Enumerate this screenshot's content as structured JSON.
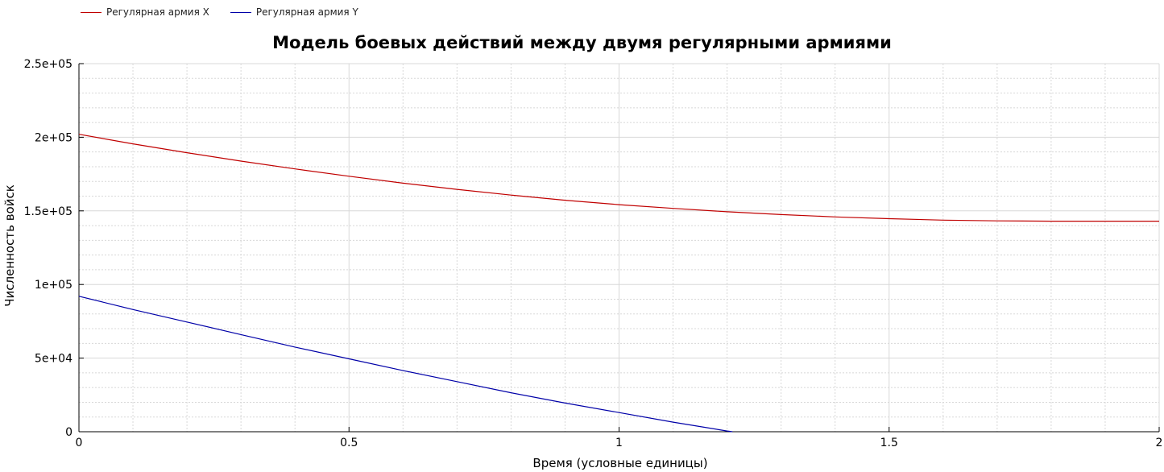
{
  "legend": {
    "x_label": "Регулярная армия X",
    "y_label": "Регулярная армия Y"
  },
  "colors": {
    "series_x": "#c00000",
    "series_y": "#0000a8",
    "grid": "#d8d8d8",
    "axis": "#000000"
  },
  "chart_data": {
    "type": "line",
    "title": "Модель боевых действий между двумя регулярными армиями",
    "xlabel": "Время (условные единицы)",
    "ylabel": "Численность войск",
    "xlim": [
      0,
      2
    ],
    "ylim": [
      0,
      250000
    ],
    "x_ticks": [
      0,
      0.5,
      1,
      1.5,
      2
    ],
    "x_tick_labels": [
      "0",
      "0.5",
      "1",
      "1.5",
      "2"
    ],
    "y_ticks": [
      0,
      50000,
      100000,
      150000,
      200000,
      250000
    ],
    "y_tick_labels": [
      "0",
      "5e+04",
      "1e+05",
      "1.5e+05",
      "2e+05",
      "2.5e+05"
    ],
    "grid": true,
    "legend_position": "top-left",
    "series": [
      {
        "name": "Регулярная армия X",
        "color": "#c00000",
        "x": [
          0,
          0.1,
          0.2,
          0.3,
          0.4,
          0.5,
          0.6,
          0.7,
          0.8,
          0.9,
          1.0,
          1.1,
          1.2,
          1.3,
          1.4,
          1.5,
          1.6,
          1.7,
          1.8,
          1.9,
          2.0
        ],
        "values": [
          202000,
          195500,
          189500,
          183800,
          178500,
          173500,
          168800,
          164600,
          160700,
          157200,
          154200,
          151700,
          149400,
          147500,
          145900,
          144700,
          143700,
          143200,
          143000,
          143000,
          143000
        ]
      },
      {
        "name": "Регулярная армия Y",
        "color": "#0000a8",
        "x": [
          0,
          0.1,
          0.2,
          0.3,
          0.4,
          0.5,
          0.6,
          0.7,
          0.8,
          0.9,
          1.0,
          1.1,
          1.2,
          1.21
        ],
        "values": [
          92000,
          83000,
          74500,
          66000,
          57500,
          49500,
          41500,
          34000,
          26500,
          19500,
          13000,
          6500,
          500,
          0
        ]
      }
    ]
  }
}
